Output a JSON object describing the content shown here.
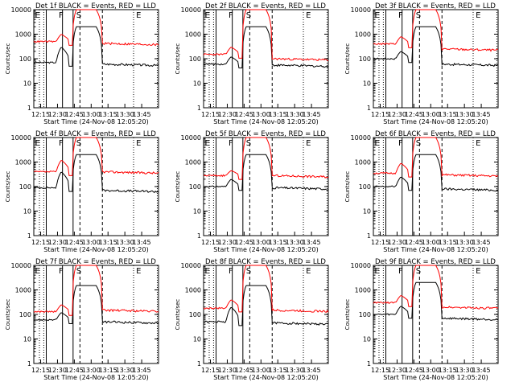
{
  "chart_data": [
    {
      "type": "line",
      "title": "Det 1f BLACK = Events, RED = LLD",
      "xlabel": "Start Time (24-Nov-08 12:05:20)",
      "ylabel": "Counts/sec",
      "yscale": "log",
      "ylim": [
        1,
        10000
      ],
      "x_ticks": [
        "12:15",
        "12:30",
        "12:45",
        "13:00",
        "13:15",
        "13:30",
        "13:45"
      ],
      "y_ticks": [
        "1",
        "10",
        "100",
        "1000",
        "10000"
      ],
      "series": [
        {
          "name": "Events",
          "color": "#000000",
          "base": 70,
          "peak1": 300,
          "flare": 2000,
          "post": 60
        },
        {
          "name": "LLD",
          "color": "#ff0000",
          "base": 500,
          "peak1": 1000,
          "flare": 10000,
          "post": 420
        }
      ],
      "markers": [
        "E",
        "F",
        "S",
        "E"
      ]
    },
    {
      "type": "line",
      "title": "Det 2f BLACK = Events, RED = LLD",
      "xlabel": "Start Time (24-Nov-08 12:05:20)",
      "ylabel": "Counts/sec",
      "yscale": "log",
      "ylim": [
        1,
        10000
      ],
      "x_ticks": [
        "12:15",
        "12:30",
        "12:45",
        "13:00",
        "13:15",
        "13:30",
        "13:45"
      ],
      "y_ticks": [
        "1",
        "10",
        "100",
        "1000",
        "10000"
      ],
      "series": [
        {
          "name": "Events",
          "color": "#000000",
          "base": 60,
          "peak1": 120,
          "flare": 2000,
          "post": 55
        },
        {
          "name": "LLD",
          "color": "#ff0000",
          "base": 150,
          "peak1": 300,
          "flare": 10000,
          "post": 100
        }
      ],
      "markers": [
        "E",
        "F",
        "S",
        "E"
      ]
    },
    {
      "type": "line",
      "title": "Det 3f BLACK = Events, RED = LLD",
      "xlabel": "Start Time (24-Nov-08 12:05:20)",
      "ylabel": "Counts/sec",
      "yscale": "log",
      "ylim": [
        1,
        10000
      ],
      "x_ticks": [
        "12:15",
        "12:30",
        "12:45",
        "13:00",
        "13:15",
        "13:30",
        "13:45"
      ],
      "y_ticks": [
        "1",
        "10",
        "100",
        "1000",
        "10000"
      ],
      "series": [
        {
          "name": "Events",
          "color": "#000000",
          "base": 100,
          "peak1": 200,
          "flare": 2000,
          "post": 60
        },
        {
          "name": "LLD",
          "color": "#ff0000",
          "base": 400,
          "peak1": 800,
          "flare": 10000,
          "post": 250
        }
      ],
      "markers": [
        "E",
        "F",
        "S",
        "E"
      ]
    },
    {
      "type": "line",
      "title": "Det 4f BLACK = Events, RED = LLD",
      "xlabel": "Start Time (24-Nov-08 12:05:20)",
      "ylabel": "Counts/sec",
      "yscale": "log",
      "ylim": [
        1,
        10000
      ],
      "x_ticks": [
        "12:15",
        "12:30",
        "12:45",
        "13:00",
        "13:15",
        "13:30",
        "13:45"
      ],
      "y_ticks": [
        "1",
        "10",
        "100",
        "1000",
        "10000"
      ],
      "series": [
        {
          "name": "Events",
          "color": "#000000",
          "base": 90,
          "peak1": 400,
          "flare": 2000,
          "post": 70
        },
        {
          "name": "LLD",
          "color": "#ff0000",
          "base": 400,
          "peak1": 1200,
          "flare": 10000,
          "post": 400
        }
      ],
      "markers": [
        "E",
        "F",
        "S",
        "E"
      ]
    },
    {
      "type": "line",
      "title": "Det 5f BLACK = Events, RED = LLD",
      "xlabel": "Start Time (24-Nov-08 12:05:20)",
      "ylabel": "Counts/sec",
      "yscale": "log",
      "ylim": [
        1,
        10000
      ],
      "x_ticks": [
        "12:15",
        "12:30",
        "12:45",
        "13:00",
        "13:15",
        "13:30",
        "13:45"
      ],
      "y_ticks": [
        "1",
        "10",
        "100",
        "1000",
        "10000"
      ],
      "series": [
        {
          "name": "Events",
          "color": "#000000",
          "base": 100,
          "peak1": 200,
          "flare": 2000,
          "post": 90
        },
        {
          "name": "LLD",
          "color": "#ff0000",
          "base": 280,
          "peak1": 450,
          "flare": 10000,
          "post": 280
        }
      ],
      "markers": [
        "E",
        "F",
        "S",
        "E"
      ]
    },
    {
      "type": "line",
      "title": "Det 6f BLACK = Events, RED = LLD",
      "xlabel": "Start Time (24-Nov-08 12:05:20)",
      "ylabel": "Counts/sec",
      "yscale": "log",
      "ylim": [
        1,
        10000
      ],
      "x_ticks": [
        "12:15",
        "12:30",
        "12:45",
        "13:00",
        "13:15",
        "13:30",
        "13:45"
      ],
      "y_ticks": [
        "1",
        "10",
        "100",
        "1000",
        "10000"
      ],
      "series": [
        {
          "name": "Events",
          "color": "#000000",
          "base": 100,
          "peak1": 250,
          "flare": 2000,
          "post": 80
        },
        {
          "name": "LLD",
          "color": "#ff0000",
          "base": 350,
          "peak1": 900,
          "flare": 10000,
          "post": 300
        }
      ],
      "markers": [
        "E",
        "F",
        "S",
        "E"
      ]
    },
    {
      "type": "line",
      "title": "Det 7f BLACK = Events, RED = LLD",
      "xlabel": "Start Time (24-Nov-08 12:05:20)",
      "ylabel": "Counts/sec",
      "yscale": "log",
      "ylim": [
        1,
        10000
      ],
      "x_ticks": [
        "12:15",
        "12:30",
        "12:45",
        "13:00",
        "13:15",
        "13:30",
        "13:45"
      ],
      "y_ticks": [
        "1",
        "10",
        "100",
        "1000",
        "10000"
      ],
      "series": [
        {
          "name": "Events",
          "color": "#000000",
          "base": 60,
          "peak1": 120,
          "flare": 1500,
          "post": 50
        },
        {
          "name": "LLD",
          "color": "#ff0000",
          "base": 130,
          "peak1": 250,
          "flare": 10000,
          "post": 150
        }
      ],
      "markers": [
        "E",
        "F",
        "S",
        "E"
      ]
    },
    {
      "type": "line",
      "title": "Det 8f BLACK = Events, RED = LLD",
      "xlabel": "Start Time (24-Nov-08 12:05:20)",
      "ylabel": "Counts/sec",
      "yscale": "log",
      "ylim": [
        1,
        10000
      ],
      "x_ticks": [
        "12:15",
        "12:30",
        "12:45",
        "13:00",
        "13:15",
        "13:30",
        "13:45"
      ],
      "y_ticks": [
        "1",
        "10",
        "100",
        "1000",
        "10000"
      ],
      "series": [
        {
          "name": "Events",
          "color": "#000000",
          "base": 50,
          "peak1": 200,
          "flare": 1500,
          "post": 45
        },
        {
          "name": "LLD",
          "color": "#ff0000",
          "base": 180,
          "peak1": 400,
          "flare": 10000,
          "post": 150
        }
      ],
      "markers": [
        "E",
        "F",
        "S",
        "E"
      ]
    },
    {
      "type": "line",
      "title": "Det 9f BLACK = Events, RED = LLD",
      "xlabel": "Start Time (24-Nov-08 12:05:20)",
      "ylabel": "Counts/sec",
      "yscale": "log",
      "ylim": [
        1,
        10000
      ],
      "x_ticks": [
        "12:15",
        "12:30",
        "12:45",
        "13:00",
        "13:15",
        "13:30",
        "13:45"
      ],
      "y_ticks": [
        "1",
        "10",
        "100",
        "1000",
        "10000"
      ],
      "series": [
        {
          "name": "Events",
          "color": "#000000",
          "base": 100,
          "peak1": 220,
          "flare": 2000,
          "post": 70
        },
        {
          "name": "LLD",
          "color": "#ff0000",
          "base": 300,
          "peak1": 600,
          "flare": 10000,
          "post": 200
        }
      ],
      "markers": [
        "E",
        "F",
        "S",
        "E"
      ]
    }
  ]
}
